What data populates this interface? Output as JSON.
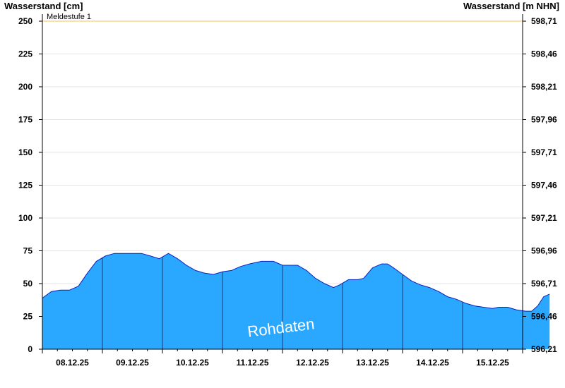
{
  "chart_data": {
    "type": "area",
    "ylabel_left": "Wasserstand [cm]",
    "ylabel_right": "Wasserstand [m NHN]",
    "ylim": [
      0,
      250
    ],
    "yticks_left": [
      "0",
      "25",
      "50",
      "75",
      "100",
      "125",
      "150",
      "175",
      "200",
      "225",
      "250"
    ],
    "yticks_right": [
      "596,21",
      "596,46",
      "596,71",
      "596,96",
      "597,21",
      "597,46",
      "597,71",
      "597,96",
      "598,21",
      "598,46",
      "598,71"
    ],
    "xlim": [
      7.75,
      15.75
    ],
    "xticks": [
      {
        "x": 8.25,
        "label": "08.12.25"
      },
      {
        "x": 9.25,
        "label": "09.12.25"
      },
      {
        "x": 10.25,
        "label": "10.12.25"
      },
      {
        "x": 11.25,
        "label": "11.12.25"
      },
      {
        "x": 12.25,
        "label": "12.12.25"
      },
      {
        "x": 13.25,
        "label": "13.12.25"
      },
      {
        "x": 14.25,
        "label": "14.12.25"
      },
      {
        "x": 15.25,
        "label": "15.12.25"
      }
    ],
    "day_boundaries": [
      8.75,
      9.75,
      10.75,
      11.75,
      12.75,
      13.75,
      14.75
    ],
    "threshold": {
      "value": 250,
      "label": "Meldestufe 1",
      "color": "#f5c35a"
    },
    "series": [
      {
        "values": [
          [
            7.75,
            39
          ],
          [
            7.9,
            44
          ],
          [
            8.05,
            45
          ],
          [
            8.2,
            45
          ],
          [
            8.35,
            48
          ],
          [
            8.5,
            58
          ],
          [
            8.65,
            67
          ],
          [
            8.8,
            71
          ],
          [
            8.95,
            73
          ],
          [
            9.1,
            73
          ],
          [
            9.25,
            73
          ],
          [
            9.4,
            73
          ],
          [
            9.55,
            71
          ],
          [
            9.7,
            69
          ],
          [
            9.85,
            73
          ],
          [
            10.0,
            69
          ],
          [
            10.15,
            64
          ],
          [
            10.3,
            60
          ],
          [
            10.45,
            58
          ],
          [
            10.6,
            57
          ],
          [
            10.75,
            59
          ],
          [
            10.9,
            60
          ],
          [
            11.05,
            63
          ],
          [
            11.2,
            65
          ],
          [
            11.4,
            67
          ],
          [
            11.6,
            67
          ],
          [
            11.75,
            64
          ],
          [
            12.0,
            64
          ],
          [
            12.15,
            60
          ],
          [
            12.3,
            54
          ],
          [
            12.45,
            50
          ],
          [
            12.6,
            47
          ],
          [
            12.7,
            49
          ],
          [
            12.85,
            53
          ],
          [
            13.0,
            53
          ],
          [
            13.1,
            54
          ],
          [
            13.25,
            62
          ],
          [
            13.4,
            65
          ],
          [
            13.5,
            65
          ],
          [
            13.6,
            62
          ],
          [
            13.75,
            57
          ],
          [
            13.9,
            52
          ],
          [
            14.05,
            49
          ],
          [
            14.2,
            47
          ],
          [
            14.35,
            44
          ],
          [
            14.5,
            40
          ],
          [
            14.65,
            38
          ],
          [
            14.8,
            35
          ],
          [
            14.95,
            33
          ],
          [
            15.1,
            32
          ],
          [
            15.25,
            31
          ],
          [
            15.35,
            32
          ],
          [
            15.5,
            32
          ],
          [
            15.65,
            30
          ],
          [
            15.8,
            29
          ],
          [
            15.9,
            29
          ],
          [
            16.0,
            33
          ],
          [
            16.1,
            40
          ],
          [
            16.2,
            42
          ]
        ]
      }
    ],
    "colors": {
      "fill": "#2aa8ff",
      "stroke": "#0a1fbf",
      "grid": "#e6e6e6",
      "boundary": "#1f3a70"
    },
    "annotation": "Rohdaten"
  }
}
